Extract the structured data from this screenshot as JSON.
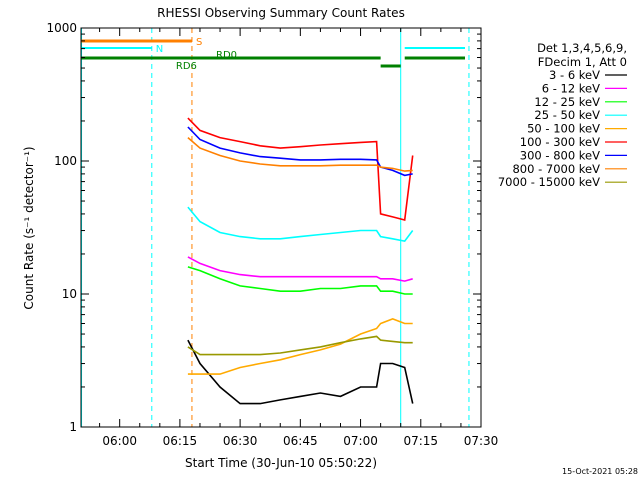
{
  "chart_data": {
    "type": "line",
    "title": "RHESSI Observing Summary Count Rates",
    "xlabel": "Start Time (30-Jun-10 05:50:22)",
    "ylabel": "Count Rate (s⁻¹ detector⁻¹)",
    "x_range": [
      "05:50:22",
      "07:30"
    ],
    "x_ticks": [
      "06:00",
      "06:15",
      "06:30",
      "06:45",
      "07:00",
      "07:15",
      "07:30"
    ],
    "y_scale": "log",
    "y_range": [
      1,
      1000
    ],
    "y_ticks": [
      "1",
      "10",
      "100",
      "1000"
    ],
    "timestamp": "15-Oct-2021 05:28",
    "legend_header": [
      "Det 1,3,4,5,6,9,",
      "FDecim 1, Att 0"
    ],
    "x": [
      "06:17",
      "06:20",
      "06:25",
      "06:30",
      "06:35",
      "06:40",
      "06:45",
      "06:50",
      "06:55",
      "07:00",
      "07:04",
      "07:05",
      "07:08",
      "07:11",
      "07:13"
    ],
    "series": [
      {
        "name": "3 - 6 keV",
        "color": "#000000",
        "values": [
          4.5,
          3.0,
          2.0,
          1.5,
          1.5,
          1.6,
          1.7,
          1.8,
          1.7,
          2.0,
          2.0,
          3.0,
          3.0,
          2.8,
          1.5
        ]
      },
      {
        "name": "6 - 12 keV",
        "color": "#ff00ff",
        "values": [
          19,
          17,
          15,
          14,
          13.5,
          13.5,
          13.5,
          13.5,
          13.5,
          13.5,
          13.5,
          13,
          13,
          12.5,
          13
        ]
      },
      {
        "name": "12 - 25 keV",
        "color": "#00ff00",
        "values": [
          16,
          15,
          13,
          11.5,
          11,
          10.5,
          10.5,
          11,
          11,
          11.5,
          11.5,
          10.5,
          10.5,
          10,
          10
        ]
      },
      {
        "name": "25 - 50 keV",
        "color": "#00ffff",
        "values": [
          45,
          35,
          29,
          27,
          26,
          26,
          27,
          28,
          29,
          30,
          30,
          27,
          26,
          25,
          30
        ]
      },
      {
        "name": "50 - 100 keV",
        "color": "#ffaa00",
        "values": [
          2.5,
          2.5,
          2.5,
          2.8,
          3.0,
          3.2,
          3.5,
          3.8,
          4.2,
          5.0,
          5.5,
          6.0,
          6.5,
          6.0,
          6.0
        ]
      },
      {
        "name": "100 - 300 keV",
        "color": "#ff0000",
        "values": [
          210,
          170,
          150,
          140,
          130,
          125,
          128,
          132,
          135,
          138,
          140,
          40,
          38,
          36,
          110
        ]
      },
      {
        "name": "300 - 800 keV",
        "color": "#0000ff",
        "values": [
          180,
          145,
          125,
          115,
          108,
          105,
          102,
          102,
          103,
          103,
          102,
          90,
          85,
          78,
          80
        ]
      },
      {
        "name": "800 - 7000 keV",
        "color": "#ff8000",
        "values": [
          150,
          125,
          110,
          100,
          95,
          92,
          92,
          92,
          93,
          93,
          93,
          90,
          88,
          84,
          85
        ]
      },
      {
        "name": "7000 - 15000 keV",
        "color": "#999900",
        "values": [
          4.0,
          3.5,
          3.5,
          3.5,
          3.5,
          3.6,
          3.8,
          4.0,
          4.3,
          4.6,
          4.8,
          4.5,
          4.4,
          4.3,
          4.3
        ]
      }
    ],
    "extra_series_note": "",
    "flags": [
      {
        "label": "S",
        "color": "#ff8000"
      },
      {
        "label": "N",
        "color": "#00ffff"
      },
      {
        "label": "RD0",
        "color": "#008000"
      },
      {
        "label": "RD6",
        "color": "#008000"
      }
    ]
  }
}
